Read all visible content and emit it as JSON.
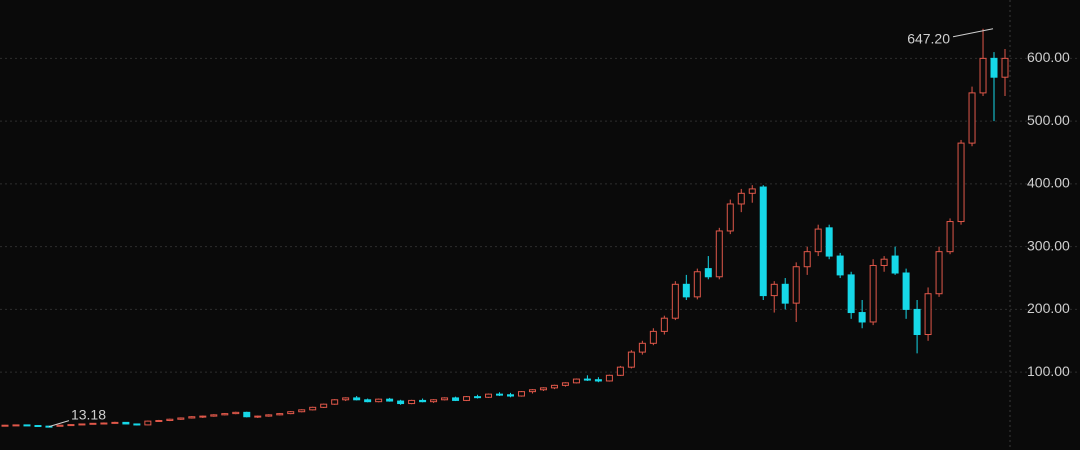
{
  "chart_data": {
    "type": "candlestick",
    "up_color": "#e0584a",
    "down_color": "#16d8e8",
    "grid": true,
    "ylim": [
      -24,
      693
    ],
    "yticks": [
      {
        "value": 100,
        "label": "100.00"
      },
      {
        "value": 200,
        "label": "200.00"
      },
      {
        "value": 300,
        "label": "300.00"
      },
      {
        "value": 400,
        "label": "400.00"
      },
      {
        "value": 500,
        "label": "500.00"
      },
      {
        "value": 600,
        "label": "600.00"
      }
    ],
    "max_label": {
      "value": 647.2,
      "label": "647.20"
    },
    "min_label": {
      "value": 13.18,
      "label": "13.18"
    },
    "open": [
      15,
      15.5,
      16,
      15,
      14,
      13.8,
      15.5,
      16.5,
      17.5,
      18.5,
      19,
      20,
      17.5,
      16,
      22,
      23,
      25,
      27,
      29,
      30,
      32,
      34,
      36,
      29,
      30,
      32,
      34,
      37,
      40,
      44,
      49,
      56,
      59,
      56,
      53,
      57,
      54,
      50,
      55,
      53,
      56,
      59,
      55,
      61,
      60,
      65,
      64,
      62,
      69,
      72,
      75,
      79,
      83,
      89,
      88,
      86,
      95,
      108,
      132,
      146,
      165,
      186,
      240,
      220,
      265,
      252,
      325,
      368,
      385,
      395,
      222,
      240,
      210,
      268,
      292,
      330,
      285,
      255,
      195,
      180,
      270,
      285,
      258,
      200,
      160,
      225,
      292,
      340,
      465,
      545,
      600,
      570
    ],
    "high": [
      16,
      16.5,
      16.5,
      15.5,
      14.5,
      16,
      17,
      18,
      19,
      20,
      21,
      20.5,
      18,
      23,
      24,
      26,
      28,
      30,
      31,
      33,
      35,
      37,
      37,
      31,
      33,
      35,
      38,
      41,
      45,
      50,
      57,
      60,
      62,
      58,
      58,
      59,
      56,
      56,
      58,
      57,
      60,
      61,
      62,
      64,
      66,
      68,
      67,
      70,
      73,
      76,
      80,
      84,
      90,
      95,
      92,
      96,
      110,
      135,
      150,
      170,
      190,
      245,
      255,
      265,
      285,
      330,
      375,
      392,
      398,
      398,
      245,
      250,
      275,
      300,
      335,
      335,
      290,
      260,
      215,
      280,
      285,
      300,
      265,
      215,
      235,
      300,
      345,
      470,
      555,
      647.2,
      610,
      615
    ],
    "low": [
      14,
      15,
      14.5,
      13.5,
      13.18,
      13.5,
      15,
      16,
      17,
      17.5,
      18,
      17,
      15,
      15.5,
      21,
      22,
      24,
      26,
      27,
      29,
      31,
      33,
      28,
      27,
      29,
      31,
      33,
      36,
      39,
      43,
      48,
      54,
      55,
      52,
      52,
      53,
      48,
      49,
      52,
      51,
      55,
      54,
      54,
      58,
      59,
      62,
      60,
      61,
      66,
      70,
      73,
      77,
      82,
      86,
      84,
      85,
      94,
      106,
      128,
      143,
      160,
      183,
      215,
      216,
      248,
      248,
      320,
      355,
      370,
      215,
      195,
      200,
      180,
      255,
      285,
      280,
      250,
      185,
      170,
      175,
      260,
      255,
      185,
      130,
      150,
      220,
      288,
      335,
      460,
      540,
      500,
      540
    ],
    "close": [
      15.5,
      16,
      15,
      14,
      13.8,
      15.5,
      16.5,
      17.5,
      18.5,
      19,
      20,
      17.5,
      16,
      22,
      23,
      25,
      27,
      29,
      30,
      32,
      34,
      36,
      29,
      30,
      32,
      34,
      37,
      40,
      44,
      49,
      56,
      59,
      56,
      53,
      57,
      54,
      50,
      55,
      53,
      56,
      59,
      55,
      61,
      60,
      65,
      64,
      62,
      69,
      72,
      75,
      79,
      83,
      89,
      88,
      86,
      95,
      108,
      132,
      146,
      165,
      186,
      240,
      220,
      260,
      252,
      325,
      368,
      385,
      392,
      222,
      240,
      210,
      268,
      292,
      328,
      285,
      255,
      195,
      180,
      270,
      280,
      258,
      200,
      160,
      225,
      292,
      340,
      465,
      545,
      600,
      570,
      600
    ]
  }
}
